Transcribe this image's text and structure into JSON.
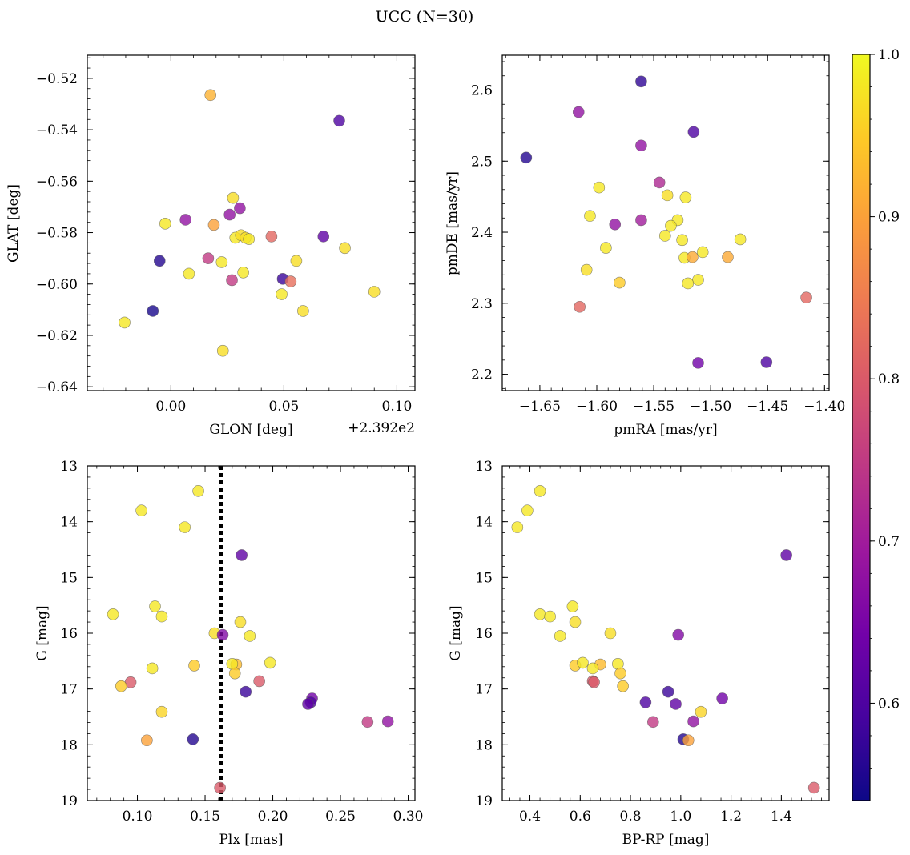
{
  "figure": {
    "suptitle": "UCC (N=30)"
  },
  "colormap": {
    "name": "plasma",
    "stops": [
      "#0d0887",
      "#46039f",
      "#7201a8",
      "#9c179e",
      "#bd3786",
      "#d8576b",
      "#ed7953",
      "#fb9f3a",
      "#fdca26",
      "#f0f921"
    ],
    "alpha": 0.8,
    "edge_color": "#555555",
    "range": [
      0.54,
      1.0
    ],
    "ticks": [
      "0.6",
      "0.7",
      "0.8",
      "0.9",
      "1.0"
    ],
    "tick_values": [
      0.6,
      0.7,
      0.8,
      0.9,
      1.0
    ]
  },
  "chart_data": [
    {
      "type": "scatter",
      "title": "",
      "xlabel": "GLON [deg]",
      "ylabel": "GLAT [deg]",
      "xlim": [
        -0.037,
        0.108
      ],
      "ylim": [
        -0.6415,
        -0.511
      ],
      "y_inverted": false,
      "x_offset_label": "+2.392e2",
      "xticks": [
        0.0,
        0.05,
        0.1
      ],
      "xtick_labels": [
        "0.00",
        "0.05",
        "0.10"
      ],
      "yticks": [
        -0.52,
        -0.54,
        -0.56,
        -0.58,
        -0.6,
        -0.62,
        -0.64
      ],
      "ytick_labels": [
        "−0.52",
        "−0.54",
        "−0.56",
        "−0.58",
        "−0.60",
        "−0.62",
        "−0.64"
      ],
      "points": [
        {
          "x": 0.0175,
          "y": -0.5265,
          "c": 0.92
        },
        {
          "x": 0.0745,
          "y": -0.5365,
          "c": 0.6
        },
        {
          "x": 0.0275,
          "y": -0.5665,
          "c": 0.97
        },
        {
          "x": 0.0305,
          "y": -0.5705,
          "c": 0.68
        },
        {
          "x": 0.0065,
          "y": -0.575,
          "c": 0.68
        },
        {
          "x": 0.026,
          "y": -0.573,
          "c": 0.68
        },
        {
          "x": -0.0025,
          "y": -0.5765,
          "c": 0.98
        },
        {
          "x": 0.019,
          "y": -0.577,
          "c": 0.9
        },
        {
          "x": 0.0285,
          "y": -0.582,
          "c": 0.98
        },
        {
          "x": 0.031,
          "y": -0.581,
          "c": 0.97
        },
        {
          "x": 0.033,
          "y": -0.582,
          "c": 0.97
        },
        {
          "x": 0.0345,
          "y": -0.5825,
          "c": 0.98
        },
        {
          "x": 0.0445,
          "y": -0.5815,
          "c": 0.82
        },
        {
          "x": 0.0675,
          "y": -0.5815,
          "c": 0.62
        },
        {
          "x": 0.077,
          "y": -0.586,
          "c": 0.97
        },
        {
          "x": 0.0165,
          "y": -0.59,
          "c": 0.75
        },
        {
          "x": -0.005,
          "y": -0.591,
          "c": 0.56
        },
        {
          "x": 0.0225,
          "y": -0.5915,
          "c": 0.98
        },
        {
          "x": 0.0555,
          "y": -0.591,
          "c": 0.97
        },
        {
          "x": 0.008,
          "y": -0.596,
          "c": 0.98
        },
        {
          "x": 0.032,
          "y": -0.5955,
          "c": 0.98
        },
        {
          "x": 0.027,
          "y": -0.5985,
          "c": 0.75
        },
        {
          "x": 0.0495,
          "y": -0.598,
          "c": 0.58
        },
        {
          "x": 0.053,
          "y": -0.599,
          "c": 0.83
        },
        {
          "x": 0.049,
          "y": -0.604,
          "c": 0.98
        },
        {
          "x": 0.09,
          "y": -0.603,
          "c": 0.97
        },
        {
          "x": -0.008,
          "y": -0.6105,
          "c": 0.55
        },
        {
          "x": 0.0585,
          "y": -0.6105,
          "c": 0.97
        },
        {
          "x": -0.0205,
          "y": -0.615,
          "c": 0.98
        },
        {
          "x": 0.023,
          "y": -0.626,
          "c": 0.97
        }
      ]
    },
    {
      "type": "scatter",
      "title": "",
      "xlabel": "pmRA [mas/yr]",
      "ylabel": "pmDE [mas/yr]",
      "xlim": [
        -1.683,
        -1.396
      ],
      "ylim": [
        2.177,
        2.649
      ],
      "y_inverted": false,
      "xticks": [
        -1.65,
        -1.6,
        -1.55,
        -1.5,
        -1.45,
        -1.4
      ],
      "xtick_labels": [
        "−1.65",
        "−1.60",
        "−1.55",
        "−1.50",
        "−1.45",
        "−1.40"
      ],
      "yticks": [
        2.2,
        2.3,
        2.4,
        2.5,
        2.6
      ],
      "ytick_labels": [
        "2.2",
        "2.3",
        "2.4",
        "2.5",
        "2.6"
      ],
      "points": [
        {
          "x": -1.561,
          "y": 2.612,
          "c": 0.57
        },
        {
          "x": -1.616,
          "y": 2.569,
          "c": 0.68
        },
        {
          "x": -1.561,
          "y": 2.522,
          "c": 0.68
        },
        {
          "x": -1.515,
          "y": 2.541,
          "c": 0.6
        },
        {
          "x": -1.662,
          "y": 2.505,
          "c": 0.56
        },
        {
          "x": -1.545,
          "y": 2.47,
          "c": 0.72
        },
        {
          "x": -1.598,
          "y": 2.463,
          "c": 0.98
        },
        {
          "x": -1.538,
          "y": 2.452,
          "c": 0.97
        },
        {
          "x": -1.522,
          "y": 2.449,
          "c": 0.98
        },
        {
          "x": -1.606,
          "y": 2.423,
          "c": 0.98
        },
        {
          "x": -1.561,
          "y": 2.417,
          "c": 0.7
        },
        {
          "x": -1.529,
          "y": 2.417,
          "c": 0.98
        },
        {
          "x": -1.584,
          "y": 2.411,
          "c": 0.68
        },
        {
          "x": -1.535,
          "y": 2.409,
          "c": 0.98
        },
        {
          "x": -1.54,
          "y": 2.395,
          "c": 0.98
        },
        {
          "x": -1.525,
          "y": 2.389,
          "c": 0.98
        },
        {
          "x": -1.474,
          "y": 2.39,
          "c": 0.98
        },
        {
          "x": -1.592,
          "y": 2.378,
          "c": 0.98
        },
        {
          "x": -1.507,
          "y": 2.372,
          "c": 0.98
        },
        {
          "x": -1.523,
          "y": 2.364,
          "c": 0.98
        },
        {
          "x": -1.516,
          "y": 2.365,
          "c": 0.91
        },
        {
          "x": -1.485,
          "y": 2.365,
          "c": 0.91
        },
        {
          "x": -1.609,
          "y": 2.347,
          "c": 0.97
        },
        {
          "x": -1.511,
          "y": 2.333,
          "c": 0.98
        },
        {
          "x": -1.58,
          "y": 2.329,
          "c": 0.95
        },
        {
          "x": -1.52,
          "y": 2.328,
          "c": 0.98
        },
        {
          "x": -1.416,
          "y": 2.308,
          "c": 0.82
        },
        {
          "x": -1.615,
          "y": 2.295,
          "c": 0.82
        },
        {
          "x": -1.511,
          "y": 2.216,
          "c": 0.64
        },
        {
          "x": -1.451,
          "y": 2.217,
          "c": 0.6
        }
      ]
    },
    {
      "type": "scatter",
      "title": "",
      "xlabel": "Plx [mas]",
      "ylabel": "G [mag]",
      "xlim": [
        0.063,
        0.305
      ],
      "ylim": [
        13.0,
        19.0
      ],
      "y_inverted": true,
      "xticks": [
        0.1,
        0.15,
        0.2,
        0.25,
        0.3
      ],
      "xtick_labels": [
        "0.10",
        "0.15",
        "0.20",
        "0.25",
        "0.30"
      ],
      "yticks": [
        13,
        14,
        15,
        16,
        17,
        18,
        19
      ],
      "ytick_labels": [
        "13",
        "14",
        "15",
        "16",
        "17",
        "18",
        "19"
      ],
      "vline": {
        "x": 0.162,
        "style": "dotted",
        "color": "#000000"
      },
      "points": [
        {
          "x": 0.145,
          "y": 13.45,
          "c": 0.98
        },
        {
          "x": 0.103,
          "y": 13.8,
          "c": 0.98
        },
        {
          "x": 0.135,
          "y": 14.1,
          "c": 0.98
        },
        {
          "x": 0.177,
          "y": 14.6,
          "c": 0.62
        },
        {
          "x": 0.113,
          "y": 15.52,
          "c": 0.98
        },
        {
          "x": 0.082,
          "y": 15.66,
          "c": 0.98
        },
        {
          "x": 0.118,
          "y": 15.7,
          "c": 0.98
        },
        {
          "x": 0.176,
          "y": 15.8,
          "c": 0.97
        },
        {
          "x": 0.157,
          "y": 16.0,
          "c": 0.97
        },
        {
          "x": 0.163,
          "y": 16.03,
          "c": 0.66
        },
        {
          "x": 0.183,
          "y": 16.05,
          "c": 0.98
        },
        {
          "x": 0.142,
          "y": 16.58,
          "c": 0.95
        },
        {
          "x": 0.198,
          "y": 16.53,
          "c": 0.98
        },
        {
          "x": 0.173,
          "y": 16.56,
          "c": 0.93
        },
        {
          "x": 0.17,
          "y": 16.55,
          "c": 0.98
        },
        {
          "x": 0.111,
          "y": 16.63,
          "c": 0.98
        },
        {
          "x": 0.172,
          "y": 16.72,
          "c": 0.95
        },
        {
          "x": 0.19,
          "y": 16.86,
          "c": 0.8
        },
        {
          "x": 0.095,
          "y": 16.88,
          "c": 0.8
        },
        {
          "x": 0.088,
          "y": 16.95,
          "c": 0.95
        },
        {
          "x": 0.18,
          "y": 17.05,
          "c": 0.58
        },
        {
          "x": 0.229,
          "y": 17.17,
          "c": 0.64
        },
        {
          "x": 0.228,
          "y": 17.24,
          "c": 0.6
        },
        {
          "x": 0.226,
          "y": 17.27,
          "c": 0.62
        },
        {
          "x": 0.118,
          "y": 17.41,
          "c": 0.96
        },
        {
          "x": 0.27,
          "y": 17.59,
          "c": 0.75
        },
        {
          "x": 0.285,
          "y": 17.58,
          "c": 0.68
        },
        {
          "x": 0.141,
          "y": 17.9,
          "c": 0.56
        },
        {
          "x": 0.107,
          "y": 17.92,
          "c": 0.9
        },
        {
          "x": 0.161,
          "y": 18.77,
          "c": 0.8
        }
      ]
    },
    {
      "type": "scatter",
      "title": "",
      "xlabel": "BP-RP [mag]",
      "ylabel": "G [mag]",
      "xlim": [
        0.29,
        1.59
      ],
      "ylim": [
        13.0,
        19.0
      ],
      "y_inverted": true,
      "xticks": [
        0.4,
        0.6,
        0.8,
        1.0,
        1.2,
        1.4
      ],
      "xtick_labels": [
        "0.4",
        "0.6",
        "0.8",
        "1.0",
        "1.2",
        "1.4"
      ],
      "yticks": [
        13,
        14,
        15,
        16,
        17,
        18,
        19
      ],
      "ytick_labels": [
        "13",
        "14",
        "15",
        "16",
        "17",
        "18",
        "19"
      ],
      "points": [
        {
          "x": 0.44,
          "y": 13.45,
          "c": 0.98
        },
        {
          "x": 0.39,
          "y": 13.8,
          "c": 0.98
        },
        {
          "x": 0.35,
          "y": 14.1,
          "c": 0.98
        },
        {
          "x": 1.42,
          "y": 14.6,
          "c": 0.62
        },
        {
          "x": 0.57,
          "y": 15.52,
          "c": 0.98
        },
        {
          "x": 0.44,
          "y": 15.66,
          "c": 0.98
        },
        {
          "x": 0.48,
          "y": 15.7,
          "c": 0.98
        },
        {
          "x": 0.58,
          "y": 15.8,
          "c": 0.97
        },
        {
          "x": 0.72,
          "y": 16.0,
          "c": 0.97
        },
        {
          "x": 0.99,
          "y": 16.03,
          "c": 0.66
        },
        {
          "x": 0.52,
          "y": 16.05,
          "c": 0.98
        },
        {
          "x": 0.58,
          "y": 16.58,
          "c": 0.95
        },
        {
          "x": 0.61,
          "y": 16.53,
          "c": 0.98
        },
        {
          "x": 0.68,
          "y": 16.56,
          "c": 0.93
        },
        {
          "x": 0.75,
          "y": 16.55,
          "c": 0.98
        },
        {
          "x": 0.65,
          "y": 16.63,
          "c": 0.98
        },
        {
          "x": 0.76,
          "y": 16.72,
          "c": 0.95
        },
        {
          "x": 0.65,
          "y": 16.86,
          "c": 0.8
        },
        {
          "x": 0.655,
          "y": 16.88,
          "c": 0.8
        },
        {
          "x": 0.77,
          "y": 16.95,
          "c": 0.95
        },
        {
          "x": 0.95,
          "y": 17.05,
          "c": 0.58
        },
        {
          "x": 1.165,
          "y": 17.17,
          "c": 0.64
        },
        {
          "x": 0.86,
          "y": 17.24,
          "c": 0.6
        },
        {
          "x": 0.98,
          "y": 17.27,
          "c": 0.62
        },
        {
          "x": 1.08,
          "y": 17.41,
          "c": 0.96
        },
        {
          "x": 0.89,
          "y": 17.59,
          "c": 0.75
        },
        {
          "x": 1.05,
          "y": 17.58,
          "c": 0.68
        },
        {
          "x": 1.01,
          "y": 17.9,
          "c": 0.56
        },
        {
          "x": 1.03,
          "y": 17.92,
          "c": 0.9
        },
        {
          "x": 1.53,
          "y": 18.77,
          "c": 0.8
        }
      ]
    }
  ]
}
